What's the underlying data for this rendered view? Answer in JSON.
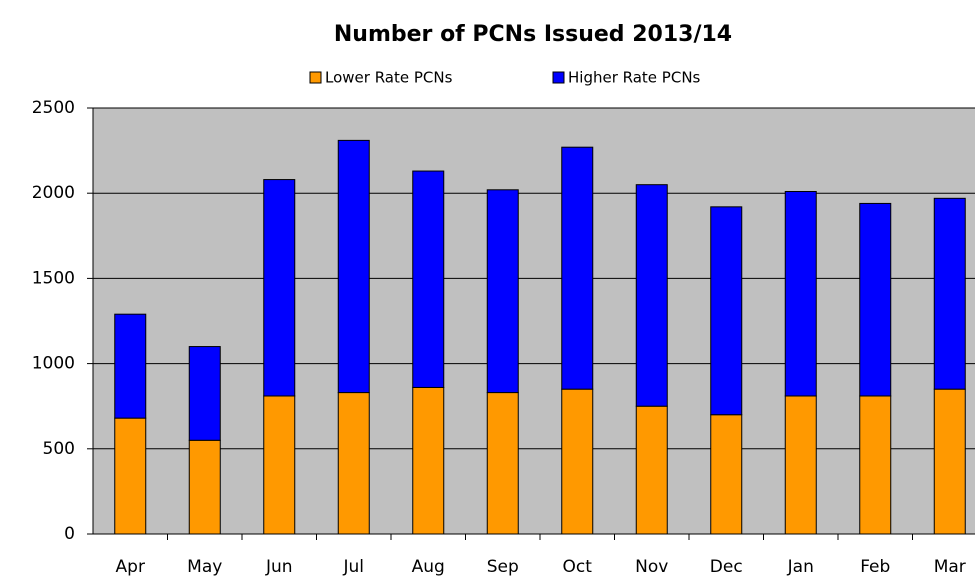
{
  "chart_data": {
    "type": "stacked-bar",
    "title": "Number of PCNs Issued 2013/14",
    "categories": [
      "Apr",
      "May",
      "Jun",
      "Jul",
      "Aug",
      "Sep",
      "Oct",
      "Nov",
      "Dec",
      "Jan",
      "Feb",
      "Mar"
    ],
    "series": [
      {
        "name": "Lower Rate PCNs",
        "color": "#ff9900",
        "values": [
          680,
          550,
          810,
          830,
          860,
          830,
          850,
          750,
          700,
          810,
          810,
          850
        ]
      },
      {
        "name": "Higher Rate PCNs",
        "color": "#0000ff",
        "values": [
          610,
          550,
          1270,
          1480,
          1270,
          1190,
          1420,
          1300,
          1220,
          1200,
          1130,
          1120
        ]
      }
    ],
    "ylim": [
      0,
      2500
    ],
    "yticks": [
      0,
      500,
      1000,
      1500,
      2000,
      2500
    ],
    "grid": true,
    "legend": "top"
  }
}
